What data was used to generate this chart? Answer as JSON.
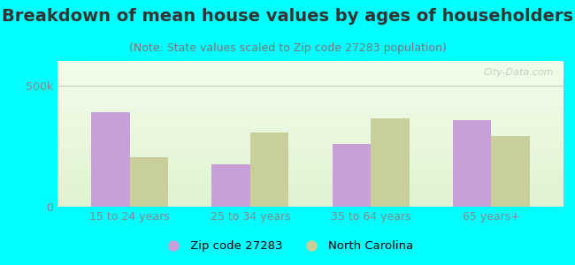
{
  "title": "Breakdown of mean house values by ages of householders",
  "subtitle": "(Note: State values scaled to Zip code 27283 population)",
  "categories": [
    "15 to 24 years",
    "25 to 34 years",
    "35 to 64 years",
    "65 years+"
  ],
  "zip_values": [
    390000,
    175000,
    260000,
    355000
  ],
  "nc_values": [
    205000,
    305000,
    365000,
    290000
  ],
  "zip_color": "#c8a0d8",
  "nc_color": "#c8cf9a",
  "ylim": [
    0,
    600000
  ],
  "yticks": [
    0,
    500000
  ],
  "ytick_labels": [
    "0",
    "500k"
  ],
  "background_color": "#00ffff",
  "legend_zip_label": "Zip code 27283",
  "legend_nc_label": "North Carolina",
  "watermark": "City-Data.com",
  "title_fontsize": 14,
  "subtitle_fontsize": 9,
  "bar_width": 0.32,
  "title_color": "#333333",
  "subtitle_color": "#777777",
  "tick_color": "#888888",
  "tick_fontsize": 9,
  "gridline_color": "#ccccbb",
  "watermark_color": "#b0c8b0"
}
